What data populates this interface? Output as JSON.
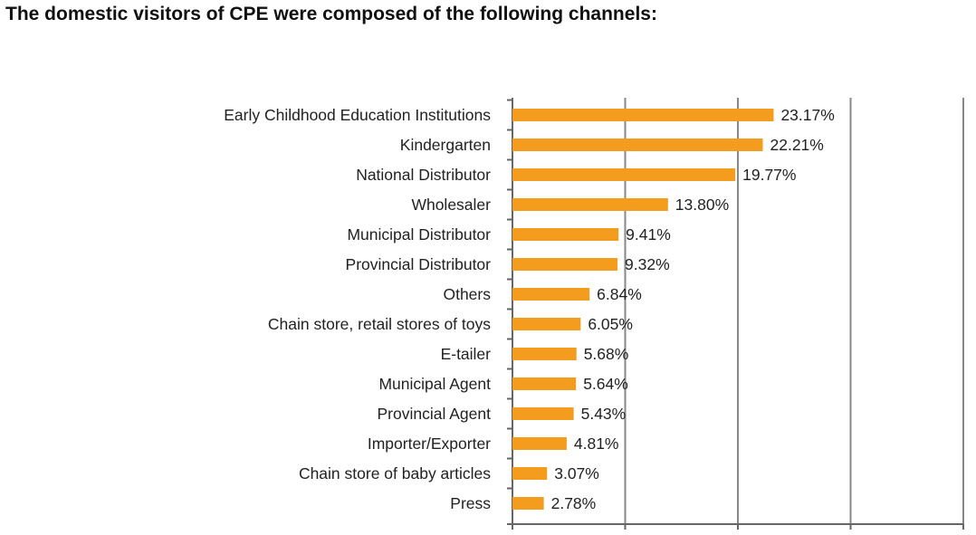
{
  "title": "The domestic visitors of CPE were composed of the following channels:",
  "colors": {
    "bar": "#f39c1e",
    "grid": "#888888",
    "axis": "#666666"
  },
  "chart_data": {
    "type": "bar",
    "orientation": "horizontal",
    "title": "The domestic visitors of CPE were composed of the following channels:",
    "xlabel": "",
    "ylabel": "",
    "xlim": [
      0,
      40
    ],
    "grid": true,
    "categories": [
      "Early Childhood Education Institutions",
      "Kindergarten",
      "National Distributor",
      "Wholesaler",
      "Municipal Distributor",
      "Provincial Distributor",
      "Others",
      "Chain store, retail stores of toys",
      "E-tailer",
      "Municipal Agent",
      "Provincial Agent",
      "Importer/Exporter",
      "Chain store of baby articles",
      "Press"
    ],
    "values": [
      23.17,
      22.21,
      19.77,
      13.8,
      9.41,
      9.32,
      6.84,
      6.05,
      5.68,
      5.64,
      5.43,
      4.81,
      3.07,
      2.78
    ],
    "value_labels": [
      "23.17%",
      "22.21%",
      "19.77%",
      "13.80%",
      "9.41%",
      "9.32%",
      "6.84%",
      "6.05%",
      "5.68%",
      "5.64%",
      "5.43%",
      "4.81%",
      "3.07%",
      "2.78%"
    ]
  }
}
